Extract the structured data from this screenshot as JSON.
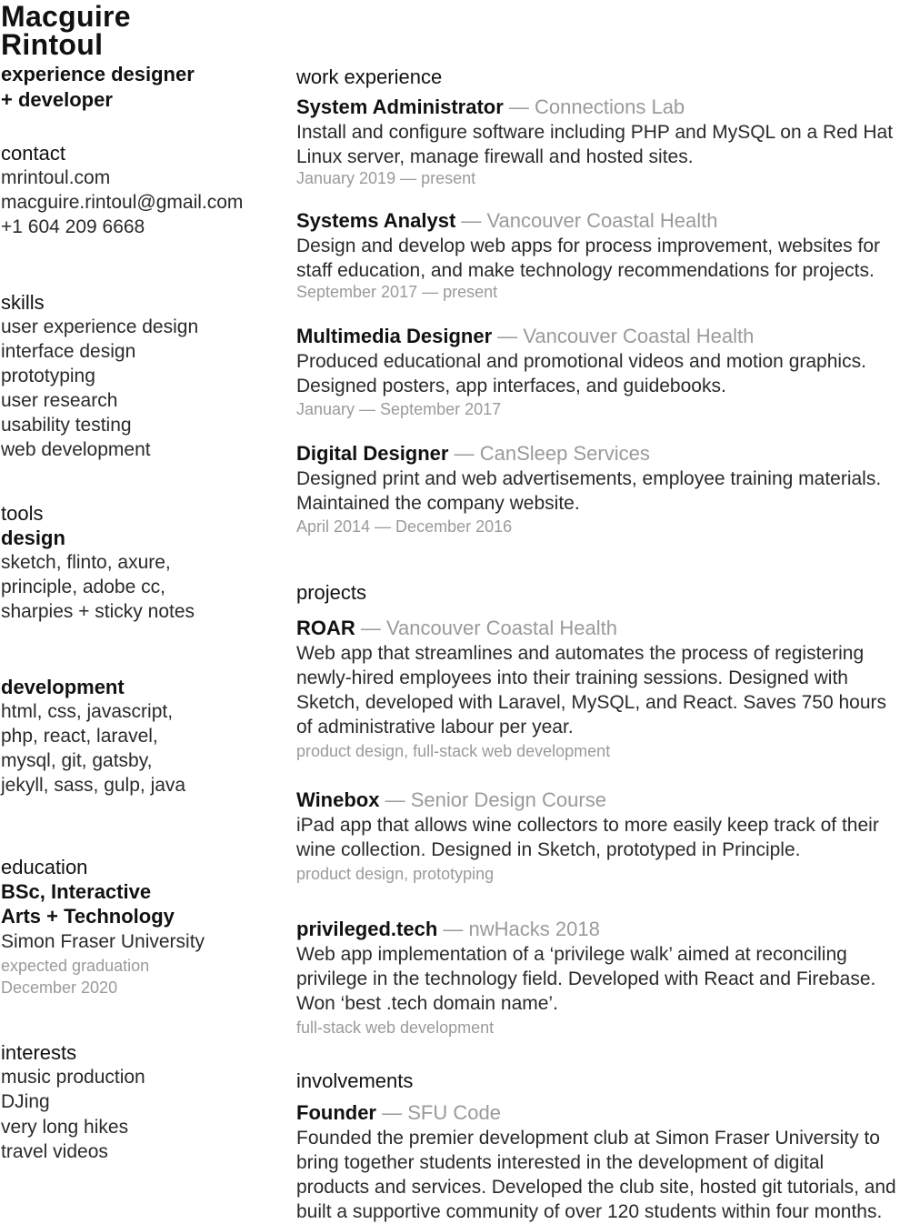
{
  "header": {
    "name_line1": "Macguire",
    "name_line2": "Rintoul",
    "role_line1": "experience designer",
    "role_line2": "+ developer"
  },
  "contact": {
    "heading": "contact",
    "website": "mrintoul.com",
    "email": "macguire.rintoul@gmail.com",
    "phone": "+1 604 209 6668"
  },
  "skills": {
    "heading": "skills",
    "items": [
      "user experience design",
      "interface design",
      "prototyping",
      "user research",
      "usability testing",
      "web development"
    ]
  },
  "tools": {
    "heading": "tools",
    "design_heading": "design",
    "design_lines": [
      "sketch, flinto, axure,",
      "principle, adobe cc,",
      "sharpies + sticky notes"
    ],
    "development_heading": "development",
    "development_lines": [
      "html, css, javascript,",
      "php, react, laravel,",
      "mysql, git, gatsby,",
      "jekyll, sass, gulp, java"
    ]
  },
  "education": {
    "heading": "education",
    "degree_line1": "BSc, Interactive",
    "degree_line2": "Arts + Technology",
    "school": "Simon Fraser University",
    "note_line1": "expected graduation",
    "note_line2": "December 2020"
  },
  "interests": {
    "heading": "interests",
    "items": [
      "music production",
      "DJing",
      "very long hikes",
      "travel videos"
    ]
  },
  "work": {
    "heading": "work experience",
    "jobs": [
      {
        "title": "System Administrator",
        "org": "Connections Lab",
        "lines": [
          "Install and configure software including PHP and MySQL on a Red Hat",
          "Linux server, manage firewall and hosted sites."
        ],
        "dates": "January 2019 — present"
      },
      {
        "title": "Systems Analyst",
        "org": "Vancouver Coastal Health",
        "lines": [
          "Design and develop web apps for process improvement, websites for",
          "staff education, and make technology recommendations for projects."
        ],
        "dates": "September 2017 — present"
      },
      {
        "title": "Multimedia Designer",
        "org": "Vancouver Coastal Health",
        "lines": [
          "Produced educational and promotional videos and motion graphics.",
          "Designed posters, app interfaces, and guidebooks."
        ],
        "dates": "January — September 2017"
      },
      {
        "title": "Digital Designer",
        "org": "CanSleep Services",
        "lines": [
          "Designed print and web advertisements, employee training materials.",
          "Maintained the company website."
        ],
        "dates": "April 2014 — December 2016"
      }
    ]
  },
  "projects": {
    "heading": "projects",
    "items": [
      {
        "title": "ROAR",
        "org": "Vancouver Coastal Health",
        "lines": [
          "Web app that streamlines and automates the process of registering",
          "newly-hired employees into their training sessions. Designed with",
          "Sketch, developed with Laravel, MySQL, and React. Saves 750 hours",
          "of administrative labour per year."
        ],
        "tags": "product design, full-stack web development"
      },
      {
        "title": "Winebox",
        "org": "Senior Design Course",
        "lines": [
          "iPad app that allows wine collectors to more easily keep track of their",
          "wine collection. Designed in Sketch, prototyped in Principle."
        ],
        "tags": "product design, prototyping"
      },
      {
        "title": "privileged.tech",
        "org": "nwHacks 2018",
        "lines": [
          "Web app implementation of a ‘privilege walk’ aimed at reconciling",
          "privilege in the technology field. Developed with React and Firebase.",
          "Won ‘best .tech domain name’."
        ],
        "tags": "full-stack web development"
      }
    ]
  },
  "involvements": {
    "heading": "involvements",
    "items": [
      {
        "title": "Founder",
        "org": "SFU Code",
        "lines": [
          "Founded the premier development club at Simon Fraser University to",
          "bring together students interested in the development of digital",
          "products and services. Developed the club site, hosted git tutorials, and",
          "built a supportive community of over 120 students within four months."
        ]
      }
    ]
  }
}
